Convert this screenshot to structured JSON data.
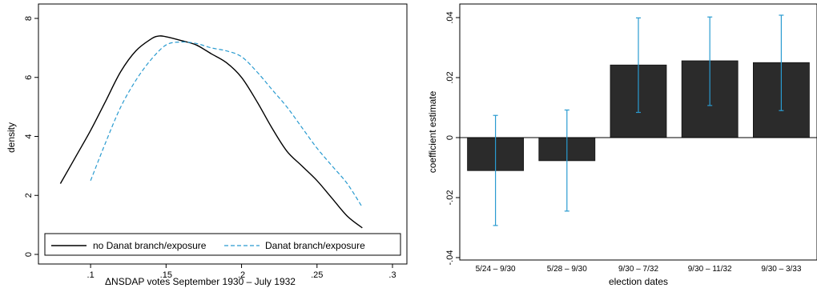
{
  "chart_data": [
    {
      "type": "line",
      "xlabel": "ΔNSDAP votes September 1930 – July 1932",
      "ylabel": "density",
      "xlim": [
        0.075,
        0.3
      ],
      "ylim": [
        0,
        8
      ],
      "xticks": [
        {
          "v": 0.1,
          "label": ".1"
        },
        {
          "v": 0.15,
          "label": ".15"
        },
        {
          "v": 0.2,
          "label": ".2"
        },
        {
          "v": 0.25,
          "label": ".25"
        },
        {
          "v": 0.3,
          "label": ".3"
        }
      ],
      "yticks": [
        {
          "v": 0,
          "label": "0"
        },
        {
          "v": 2,
          "label": "2"
        },
        {
          "v": 4,
          "label": "4"
        },
        {
          "v": 6,
          "label": "6"
        },
        {
          "v": 8,
          "label": "8"
        }
      ],
      "legend_position": "bottom",
      "series": [
        {
          "name": "no Danat branch/exposure",
          "color": "#000000",
          "dash": "solid",
          "points": [
            [
              0.08,
              2.4
            ],
            [
              0.09,
              3.3
            ],
            [
              0.1,
              4.2
            ],
            [
              0.11,
              5.2
            ],
            [
              0.12,
              6.2
            ],
            [
              0.13,
              6.9
            ],
            [
              0.14,
              7.3
            ],
            [
              0.145,
              7.4
            ],
            [
              0.15,
              7.38
            ],
            [
              0.16,
              7.25
            ],
            [
              0.17,
              7.1
            ],
            [
              0.18,
              6.8
            ],
            [
              0.19,
              6.5
            ],
            [
              0.2,
              6.0
            ],
            [
              0.21,
              5.2
            ],
            [
              0.22,
              4.3
            ],
            [
              0.23,
              3.5
            ],
            [
              0.24,
              3.0
            ],
            [
              0.25,
              2.5
            ],
            [
              0.26,
              1.9
            ],
            [
              0.27,
              1.3
            ],
            [
              0.28,
              0.9
            ]
          ]
        },
        {
          "name": "Danat branch/exposure",
          "color": "#2a9bd0",
          "dash": "dashed",
          "points": [
            [
              0.1,
              2.5
            ],
            [
              0.11,
              3.8
            ],
            [
              0.12,
              5.0
            ],
            [
              0.13,
              5.9
            ],
            [
              0.14,
              6.6
            ],
            [
              0.15,
              7.1
            ],
            [
              0.16,
              7.2
            ],
            [
              0.17,
              7.15
            ],
            [
              0.18,
              7.0
            ],
            [
              0.19,
              6.9
            ],
            [
              0.2,
              6.7
            ],
            [
              0.21,
              6.2
            ],
            [
              0.22,
              5.6
            ],
            [
              0.23,
              5.0
            ],
            [
              0.24,
              4.3
            ],
            [
              0.25,
              3.6
            ],
            [
              0.26,
              3.0
            ],
            [
              0.27,
              2.4
            ],
            [
              0.28,
              1.6
            ]
          ]
        }
      ]
    },
    {
      "type": "bar",
      "xlabel": "election dates",
      "ylabel": "coefficient estimate",
      "ylim": [
        -0.04,
        0.04
      ],
      "yticks": [
        {
          "v": -0.04,
          "label": "-.04"
        },
        {
          "v": -0.02,
          "label": "-.02"
        },
        {
          "v": 0,
          "label": "0"
        },
        {
          "v": 0.02,
          "label": ".02"
        },
        {
          "v": 0.04,
          "label": ".04"
        }
      ],
      "categories": [
        "5/24 – 9/30",
        "5/28 – 9/30",
        "9/30 – 7/32",
        "9/30 – 11/32",
        "9/30 – 3/33"
      ],
      "values": [
        -0.011,
        -0.0077,
        0.0242,
        0.0256,
        0.025
      ],
      "error_low": [
        -0.0293,
        -0.0245,
        0.0084,
        0.0107,
        0.009
      ],
      "error_high": [
        0.0074,
        0.0092,
        0.0399,
        0.0402,
        0.0408
      ],
      "bar_color": "#2b2b2b",
      "error_color": "#2a9bd0"
    }
  ]
}
